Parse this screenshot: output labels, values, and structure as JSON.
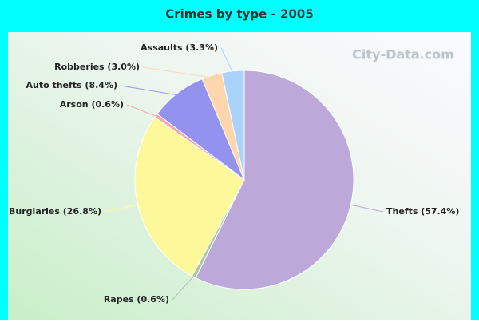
{
  "chart_data": {
    "type": "pie",
    "title": "Crimes by type - 2005",
    "watermark": "City-Data.com",
    "values": [
      57.4,
      0.6,
      26.8,
      0.6,
      8.4,
      3.0,
      3.3
    ],
    "value_labels": [
      "Thefts (57.4%)",
      "Rapes (0.6%)",
      "Burglaries (26.8%)",
      "Arson (0.6%)",
      "Auto thefts (8.4%)",
      "Robberies (3.0%)",
      "Assaults (3.3%)"
    ],
    "colors": [
      "#bca8d9",
      "#a9c9a3",
      "#fdf99a",
      "#f3a9ab",
      "#9393ef",
      "#fed6ad",
      "#aad3fb"
    ]
  }
}
